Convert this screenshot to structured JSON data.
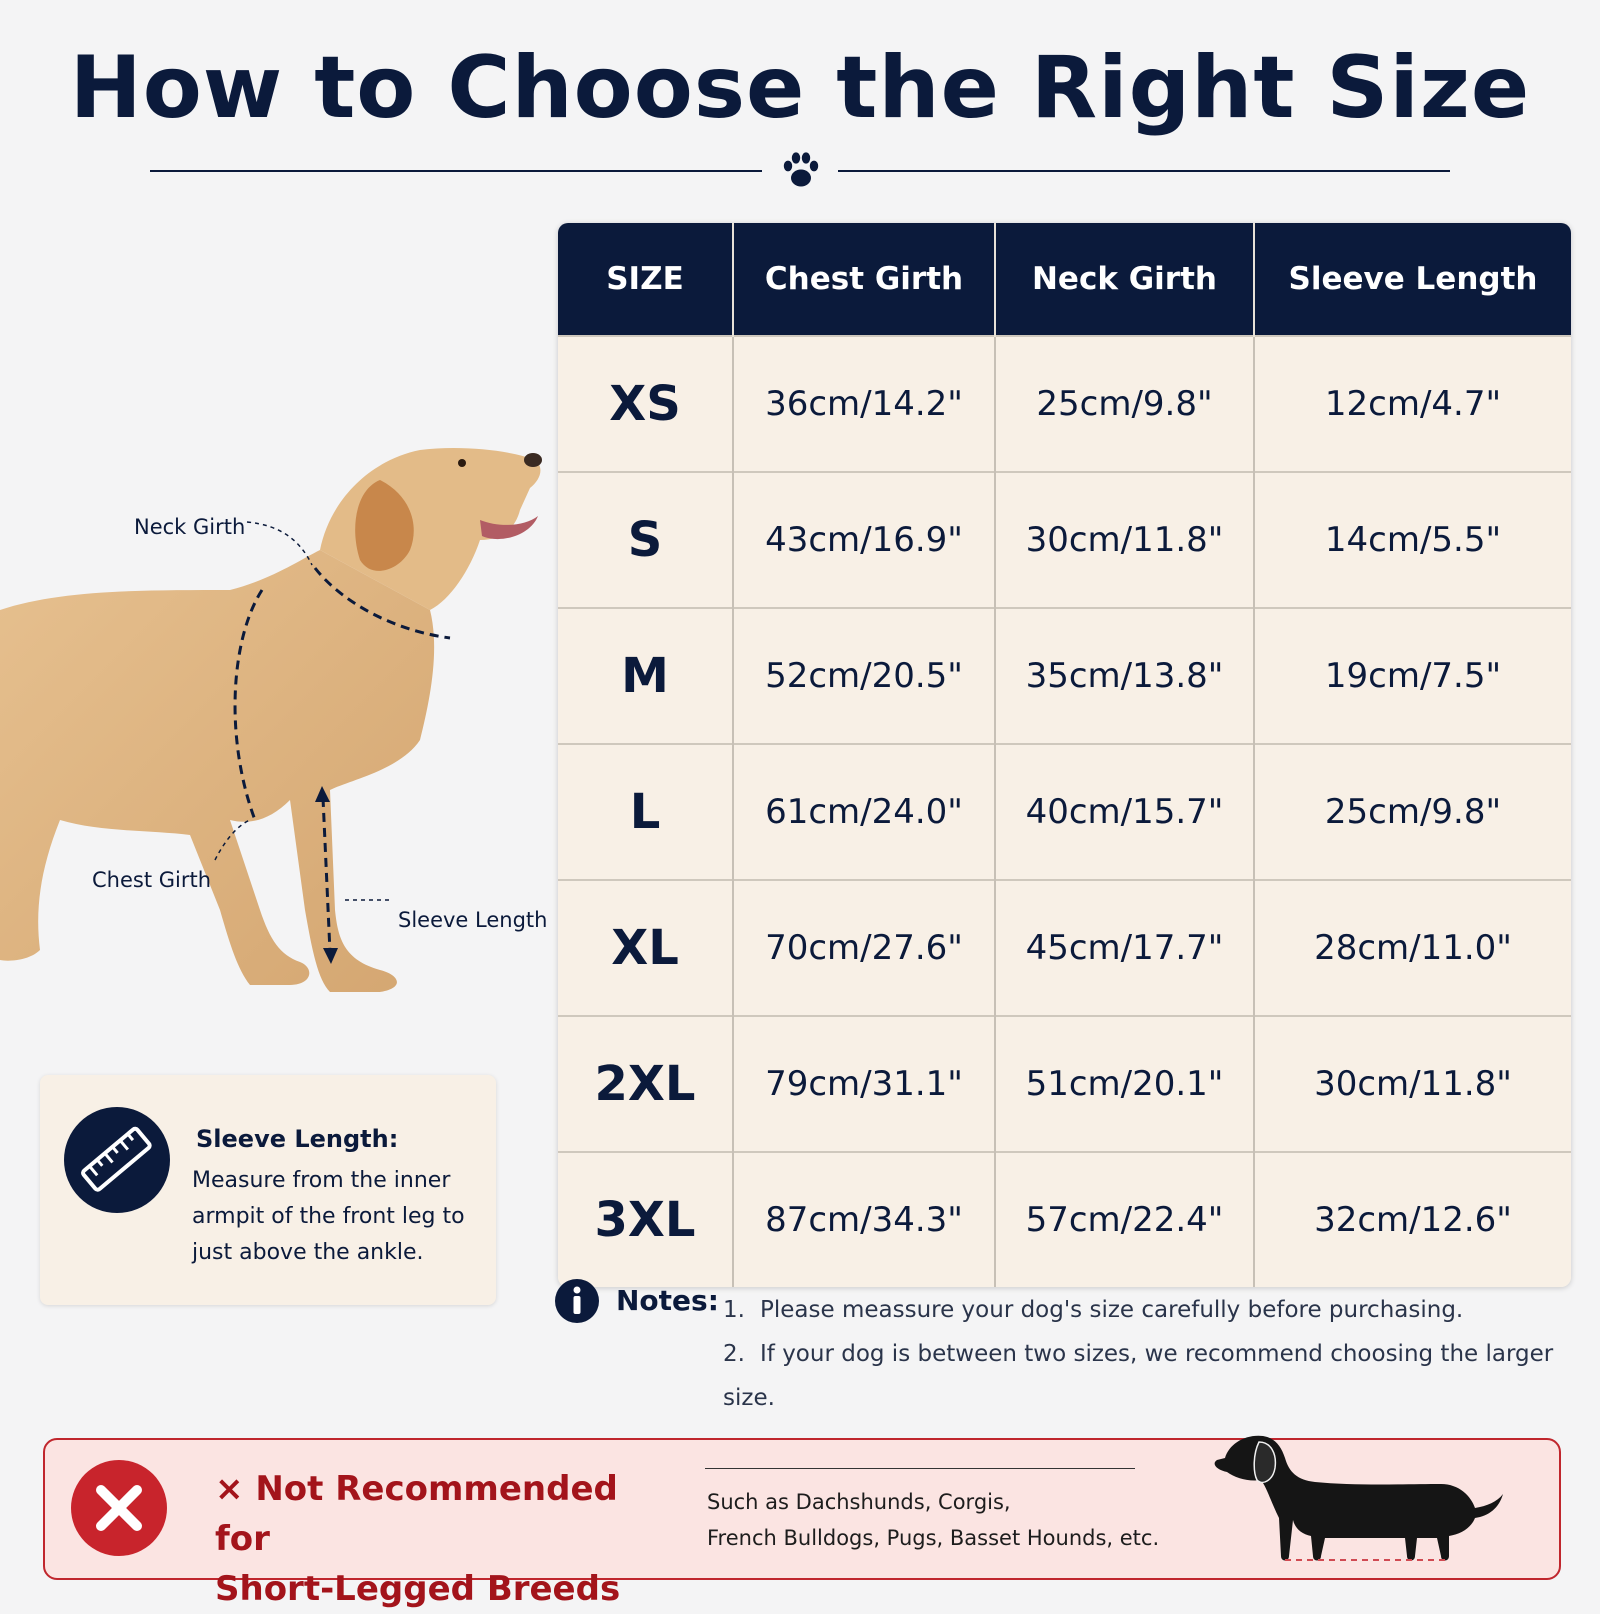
{
  "header": {
    "title": "How to Choose the Right Size"
  },
  "icons": {
    "divider": "paw-icon",
    "sleeve_card": "ruler-icon",
    "notes": "info-icon",
    "warning": "close-icon",
    "warning_title_mark": "×",
    "breed_illustration": "dachshund-silhouette"
  },
  "dog_diagram": {
    "labels": {
      "neck": "Neck Girth",
      "chest": "Chest Girth",
      "sleeve": "Sleeve Length"
    }
  },
  "size_table": {
    "headers": [
      "SIZE",
      "Chest Girth",
      "Neck Girth",
      "Sleeve Length"
    ],
    "rows": [
      {
        "size": "XS",
        "chest": "36cm/14.2\"",
        "neck": "25cm/9.8\"",
        "sleeve": "12cm/4.7\""
      },
      {
        "size": "S",
        "chest": "43cm/16.9\"",
        "neck": "30cm/11.8\"",
        "sleeve": "14cm/5.5\""
      },
      {
        "size": "M",
        "chest": "52cm/20.5\"",
        "neck": "35cm/13.8\"",
        "sleeve": "19cm/7.5\""
      },
      {
        "size": "L",
        "chest": "61cm/24.0\"",
        "neck": "40cm/15.7\"",
        "sleeve": "25cm/9.8\""
      },
      {
        "size": "XL",
        "chest": "70cm/27.6\"",
        "neck": "45cm/17.7\"",
        "sleeve": "28cm/11.0\""
      },
      {
        "size": "2XL",
        "chest": "79cm/31.1\"",
        "neck": "51cm/20.1\"",
        "sleeve": "30cm/11.8\""
      },
      {
        "size": "3XL",
        "chest": "87cm/34.3\"",
        "neck": "57cm/22.4\"",
        "sleeve": "32cm/12.6\""
      }
    ]
  },
  "sleeve_card": {
    "title": "Sleeve Length:",
    "text": "Measure from the inner armpit of the front leg to just above the ankle."
  },
  "notes": {
    "label": "Notes:",
    "items": [
      {
        "num": "1.",
        "text": "Please meassure your dog's size carefully before purchasing."
      },
      {
        "num": "2.",
        "text": "If your dog is between two sizes, we recommend choosing the larger size."
      }
    ]
  },
  "warning": {
    "title_line1": "Not Recommended for",
    "title_line2": "Short-Legged Breeds",
    "text_line1": "Such as Dachshunds, Corgis,",
    "text_line2": "French Bulldogs, Pugs, Basset Hounds, etc."
  },
  "colors": {
    "navy": "#0b1a3b",
    "cream": "#f8f0e6",
    "warning_red": "#c8242c",
    "warning_bg": "#fbe4e2"
  }
}
